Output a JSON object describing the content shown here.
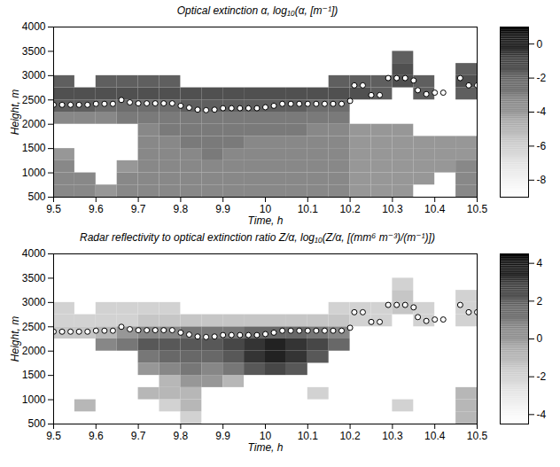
{
  "chart_data": [
    {
      "type": "heatmap",
      "title": "Optical extinction α, log₁₀(α, [m⁻¹])",
      "xlabel": "Time, h",
      "ylabel": "Height, m",
      "xlim": [
        9.5,
        10.5
      ],
      "xticks": [
        9.5,
        9.6,
        9.7,
        9.8,
        9.9,
        10,
        10.1,
        10.2,
        10.3,
        10.4,
        10.5
      ],
      "ylim": [
        500,
        4000
      ],
      "yticks": [
        500,
        1000,
        1500,
        2000,
        2500,
        3000,
        3500,
        4000
      ],
      "x_bins": [
        9.5,
        9.55,
        9.6,
        9.65,
        9.7,
        9.75,
        9.8,
        9.85,
        9.9,
        9.95,
        10,
        10.05,
        10.1,
        10.15,
        10.2,
        10.25,
        10.3,
        10.35,
        10.4,
        10.45,
        10.5
      ],
      "y_bins": [
        500,
        750,
        1000,
        1250,
        1500,
        1750,
        2000,
        2250,
        2500,
        2750,
        3000,
        3250,
        3500,
        3750,
        4000
      ],
      "z": [
        [
          -3.5,
          -3.5,
          -4,
          -3.5,
          -3.5,
          -3.5,
          -3.5,
          -3.5,
          -3.5,
          -3.5,
          -3.5,
          -3.5,
          -3.5,
          -3.5,
          -4,
          -4,
          -4,
          null,
          null,
          -3.5
        ],
        [
          -3.5,
          -3.5,
          null,
          -3.5,
          -3.5,
          -3.5,
          -3.5,
          -3.5,
          -3.5,
          -3.5,
          -3.5,
          -3.5,
          -3.5,
          -3.5,
          -4,
          -4,
          -4,
          -4,
          null,
          -3.5
        ],
        [
          -3.5,
          null,
          null,
          -4,
          -3.5,
          -3.5,
          -3.5,
          -3.5,
          -3.5,
          -3.5,
          -3.5,
          -3.5,
          -3.5,
          -3.5,
          -4,
          -4,
          -4,
          -4,
          -4,
          -3.5
        ],
        [
          -4,
          null,
          null,
          null,
          -3.5,
          -3.5,
          -3.5,
          -3,
          -3.5,
          -3.5,
          -3.5,
          -3.5,
          -3.5,
          -3.5,
          -4,
          -4,
          -4,
          -4,
          -4,
          -4
        ],
        [
          null,
          null,
          null,
          null,
          -3.5,
          -3.5,
          -3,
          -3,
          -3,
          -3.5,
          -3.5,
          -3.5,
          -3.5,
          -3.5,
          -4,
          -4,
          -4,
          -4,
          -4,
          -4
        ],
        [
          null,
          null,
          null,
          null,
          -3.5,
          -3,
          -3,
          -3,
          -3,
          -3,
          -3,
          -3,
          -3.5,
          -3.5,
          -4,
          -4,
          -4,
          null,
          null,
          null
        ],
        [
          -3.5,
          -3.5,
          -3.5,
          -3,
          -3,
          -3,
          -3,
          -3,
          -3,
          -3,
          -3,
          -3,
          -3,
          -3,
          null,
          null,
          null,
          null,
          null,
          null
        ],
        [
          -2,
          -2,
          -2.5,
          -2.5,
          -2.5,
          -2.5,
          -2,
          -2,
          -2,
          -2,
          -2,
          -2,
          -2.5,
          -2.5,
          null,
          null,
          null,
          null,
          null,
          null
        ],
        [
          -1.5,
          -1.5,
          -1.5,
          -1.5,
          -1.5,
          -1.5,
          -1.5,
          -1.5,
          -1.5,
          -1.5,
          -1.5,
          -1.5,
          -1.5,
          -1.5,
          -1.5,
          -2,
          null,
          -2,
          null,
          -2
        ],
        [
          -2,
          null,
          -2,
          -2,
          -2,
          -2,
          null,
          null,
          null,
          null,
          null,
          null,
          null,
          -2,
          -2,
          -2,
          -1.5,
          -2,
          null,
          -1.5
        ],
        [
          null,
          null,
          null,
          null,
          null,
          null,
          null,
          null,
          null,
          null,
          null,
          null,
          null,
          null,
          null,
          null,
          -1.5,
          null,
          null,
          -2
        ],
        [
          null,
          null,
          null,
          null,
          null,
          null,
          null,
          null,
          null,
          null,
          null,
          null,
          null,
          null,
          null,
          null,
          -2,
          null,
          null,
          null
        ],
        [
          null,
          null,
          null,
          null,
          null,
          null,
          null,
          null,
          null,
          null,
          null,
          null,
          null,
          null,
          null,
          null,
          null,
          null,
          null,
          null
        ],
        [
          null,
          null,
          null,
          null,
          null,
          null,
          null,
          null,
          null,
          null,
          null,
          null,
          null,
          null,
          null,
          null,
          null,
          null,
          null,
          null
        ]
      ],
      "colorbar": {
        "range": [
          -9,
          1
        ],
        "ticks": [
          -8,
          -6,
          -4,
          -2,
          0
        ]
      },
      "series": [
        {
          "type": "scatter",
          "marker": "circle",
          "color": "white",
          "x": [
            9.5,
            9.52,
            9.54,
            9.56,
            9.58,
            9.6,
            9.62,
            9.64,
            9.66,
            9.68,
            9.7,
            9.72,
            9.74,
            9.76,
            9.78,
            9.8,
            9.82,
            9.84,
            9.86,
            9.88,
            9.9,
            9.92,
            9.94,
            9.96,
            9.98,
            10,
            10.02,
            10.04,
            10.06,
            10.08,
            10.1,
            10.12,
            10.14,
            10.16,
            10.18,
            10.2,
            10.21,
            10.23,
            10.25,
            10.27,
            10.29,
            10.31,
            10.33,
            10.35,
            10.36,
            10.38,
            10.4,
            10.42,
            10.46,
            10.48,
            10.5
          ],
          "values": [
            2400,
            2400,
            2400,
            2400,
            2400,
            2420,
            2420,
            2420,
            2500,
            2450,
            2430,
            2430,
            2430,
            2430,
            2430,
            2380,
            2340,
            2300,
            2290,
            2300,
            2330,
            2330,
            2330,
            2330,
            2330,
            2350,
            2380,
            2420,
            2420,
            2420,
            2420,
            2420,
            2420,
            2420,
            2420,
            2480,
            2800,
            2800,
            2600,
            2600,
            2950,
            2950,
            2950,
            2900,
            2700,
            2620,
            2650,
            2650,
            2950,
            2800,
            2800
          ]
        }
      ]
    },
    {
      "type": "heatmap",
      "title": "Radar reflectivity to optical extinction ratio Z/α, log₁₀(Z/α, [(mm⁶ m⁻³)/(m⁻¹)])",
      "xlabel": "Time, h",
      "ylabel": "Height, m",
      "xlim": [
        9.5,
        10.5
      ],
      "xticks": [
        9.5,
        9.6,
        9.7,
        9.8,
        9.9,
        10,
        10.1,
        10.2,
        10.3,
        10.4,
        10.5
      ],
      "ylim": [
        500,
        4000
      ],
      "yticks": [
        500,
        1000,
        1500,
        2000,
        2500,
        3000,
        3500,
        4000
      ],
      "x_bins": [
        9.5,
        9.55,
        9.6,
        9.65,
        9.7,
        9.75,
        9.8,
        9.85,
        9.9,
        9.95,
        10,
        10.05,
        10.1,
        10.15,
        10.2,
        10.25,
        10.3,
        10.35,
        10.4,
        10.45,
        10.5
      ],
      "y_bins": [
        500,
        750,
        1000,
        1250,
        1500,
        1750,
        2000,
        2250,
        2500,
        2750,
        3000,
        3250,
        3500,
        3750,
        4000
      ],
      "z": [
        [
          null,
          null,
          null,
          null,
          null,
          null,
          -2,
          null,
          null,
          null,
          null,
          null,
          null,
          null,
          null,
          null,
          null,
          null,
          null,
          -1
        ],
        [
          null,
          -1,
          null,
          null,
          null,
          -2,
          -1,
          null,
          null,
          null,
          null,
          null,
          null,
          null,
          null,
          null,
          -2,
          null,
          null,
          -1
        ],
        [
          null,
          null,
          null,
          null,
          -1,
          -1,
          -1,
          null,
          null,
          null,
          null,
          null,
          -2,
          null,
          null,
          null,
          null,
          null,
          null,
          -1
        ],
        [
          null,
          null,
          null,
          null,
          null,
          -1,
          0,
          0,
          -1,
          null,
          null,
          null,
          null,
          null,
          null,
          null,
          null,
          null,
          null,
          null
        ],
        [
          null,
          null,
          null,
          null,
          0,
          0.5,
          1,
          0.5,
          1,
          2,
          2.5,
          2,
          null,
          null,
          null,
          null,
          null,
          null,
          null,
          null
        ],
        [
          null,
          null,
          null,
          null,
          1,
          1.5,
          1.5,
          1.5,
          2,
          3,
          3.5,
          3,
          2,
          null,
          null,
          null,
          null,
          null,
          null,
          null
        ],
        [
          null,
          null,
          0.5,
          1,
          2,
          2,
          2,
          2,
          2.5,
          3,
          3.5,
          3,
          2.5,
          1.5,
          null,
          null,
          null,
          null,
          null,
          null
        ],
        [
          -1.5,
          -1.5,
          -1,
          0,
          0.5,
          0.5,
          1,
          1,
          1,
          1.5,
          1.5,
          1.5,
          1,
          0.5,
          null,
          null,
          null,
          null,
          null,
          null
        ],
        [
          -2,
          -2,
          -2,
          -2,
          -1.5,
          -1.5,
          -1.5,
          -1.5,
          -1.5,
          -1.5,
          -1.5,
          -1.5,
          -1.5,
          -1.5,
          -2,
          -2,
          null,
          -2,
          null,
          -2
        ],
        [
          -2,
          null,
          -2,
          -2,
          -2,
          -2,
          null,
          null,
          null,
          null,
          null,
          null,
          null,
          -2,
          -2,
          -2,
          -1.5,
          -2,
          null,
          -2
        ],
        [
          null,
          null,
          null,
          null,
          null,
          null,
          null,
          null,
          null,
          null,
          null,
          null,
          null,
          null,
          null,
          null,
          -1.5,
          null,
          null,
          -2
        ],
        [
          null,
          null,
          null,
          null,
          null,
          null,
          null,
          null,
          null,
          null,
          null,
          null,
          null,
          null,
          null,
          null,
          -2,
          null,
          null,
          null
        ],
        [
          null,
          null,
          null,
          null,
          null,
          null,
          null,
          null,
          null,
          null,
          null,
          null,
          null,
          null,
          null,
          null,
          null,
          null,
          null,
          null
        ],
        [
          null,
          null,
          null,
          null,
          null,
          null,
          null,
          null,
          null,
          null,
          null,
          null,
          null,
          null,
          null,
          null,
          null,
          null,
          null,
          null
        ]
      ],
      "colorbar": {
        "range": [
          -4.5,
          4.5
        ],
        "ticks": [
          -4,
          -2,
          0,
          2,
          4
        ]
      },
      "series": [
        {
          "type": "scatter",
          "marker": "circle",
          "color": "white",
          "x": [
            9.5,
            9.52,
            9.54,
            9.56,
            9.58,
            9.6,
            9.62,
            9.64,
            9.66,
            9.68,
            9.7,
            9.72,
            9.74,
            9.76,
            9.78,
            9.8,
            9.82,
            9.84,
            9.86,
            9.88,
            9.9,
            9.92,
            9.94,
            9.96,
            9.98,
            10,
            10.02,
            10.04,
            10.06,
            10.08,
            10.1,
            10.12,
            10.14,
            10.16,
            10.18,
            10.2,
            10.21,
            10.23,
            10.25,
            10.27,
            10.29,
            10.31,
            10.33,
            10.35,
            10.36,
            10.38,
            10.4,
            10.42,
            10.46,
            10.48,
            10.5
          ],
          "values": [
            2400,
            2400,
            2400,
            2400,
            2400,
            2420,
            2420,
            2420,
            2500,
            2450,
            2430,
            2430,
            2430,
            2430,
            2430,
            2380,
            2340,
            2300,
            2290,
            2300,
            2330,
            2330,
            2330,
            2330,
            2330,
            2350,
            2380,
            2420,
            2420,
            2420,
            2420,
            2420,
            2420,
            2420,
            2420,
            2480,
            2800,
            2800,
            2600,
            2600,
            2950,
            2950,
            2950,
            2900,
            2700,
            2620,
            2650,
            2650,
            2950,
            2800,
            2800
          ]
        }
      ]
    }
  ]
}
